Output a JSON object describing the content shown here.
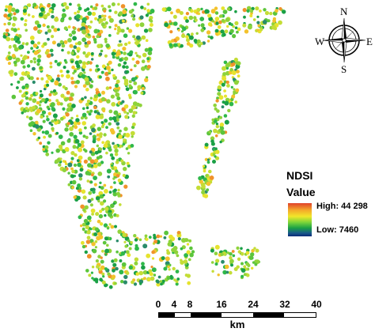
{
  "map": {
    "legend": {
      "title": "NDSI",
      "subtitle": "Value",
      "high_label": "High:  44 298",
      "low_label": "Low:  7460",
      "ramp_colors": [
        "#e0412a",
        "#f4a52a",
        "#f1e72a",
        "#7ad43a",
        "#1aa046",
        "#1a5a8a",
        "#0b2a78"
      ]
    },
    "compass": {
      "north": "N",
      "south": "S",
      "east": "E",
      "west": "W"
    },
    "scalebar": {
      "ticks": [
        "0",
        "4",
        "8",
        "16",
        "24",
        "32",
        "40"
      ],
      "unit": "km"
    },
    "point_colors": [
      "#1aa046",
      "#2fb84a",
      "#5cc53c",
      "#8fd33a",
      "#c4dd36",
      "#e6e32e",
      "#f3c22c",
      "#f0922a",
      "#2a8c6a"
    ]
  }
}
